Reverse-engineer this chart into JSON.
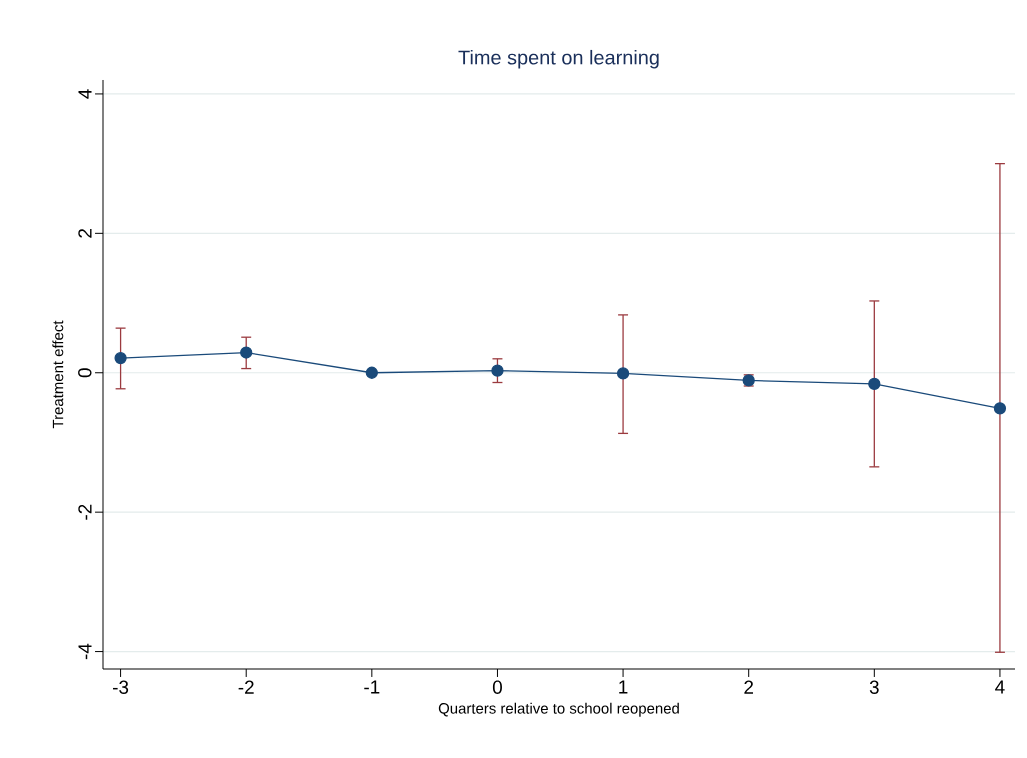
{
  "chart_data": {
    "type": "line",
    "title": "Time spent on learning",
    "xlabel": "Quarters relative to school reopened",
    "ylabel": "Treatment effect",
    "x": [
      -3,
      -2,
      -1,
      0,
      1,
      2,
      3,
      4
    ],
    "series": [
      {
        "color": "#1a4a7a",
        "values": [
          0.21,
          0.29,
          0,
          0.03,
          -0.01,
          -0.11,
          -0.16,
          -0.51
        ],
        "errors": [
          [
            -0.23,
            0.64
          ],
          [
            0.06,
            0.51
          ],
          null,
          [
            -0.14,
            0.2
          ],
          [
            -0.87,
            0.83
          ],
          [
            -0.19,
            -0.03
          ],
          [
            -1.35,
            1.03
          ],
          [
            -4.01,
            3.0
          ]
        ]
      }
    ],
    "xlim": [
      -3.14,
      4.12
    ],
    "ylim": [
      -4.25,
      4.2
    ],
    "xticks": [
      -3,
      -2,
      -1,
      0,
      1,
      2,
      3,
      4
    ],
    "yticks": [
      -4,
      -2,
      0,
      2,
      4
    ],
    "grid": "y",
    "marker": "circle",
    "line_style": "solid"
  }
}
